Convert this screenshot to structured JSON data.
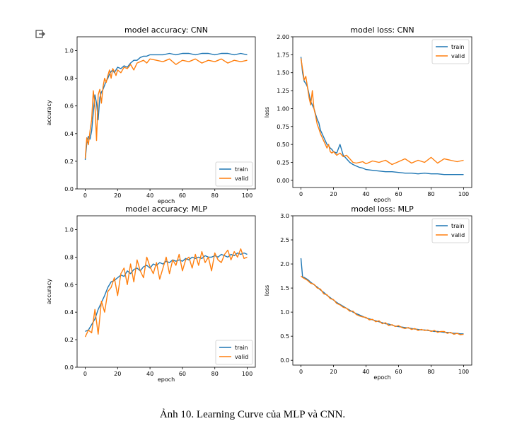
{
  "toolbar": {
    "export_icon": "export-icon"
  },
  "caption": "Ảnh 10. Learning Curve của MLP và CNN.",
  "colors": {
    "train": "#1f77b4",
    "valid": "#ff7f0e",
    "axis": "#000000"
  },
  "chart_data": [
    {
      "id": "cnn-accuracy",
      "type": "line",
      "title": "model accuracy: CNN",
      "xlabel": "epoch",
      "ylabel": "accuracy",
      "xlim": [
        -5,
        105
      ],
      "ylim": [
        0.0,
        1.1
      ],
      "xticks": [
        0,
        20,
        40,
        60,
        80,
        100
      ],
      "yticks": [
        0.0,
        0.2,
        0.4,
        0.6,
        0.8,
        1.0
      ],
      "ytick_labels": [
        "0.0",
        "0.2",
        "0.4",
        "0.6",
        "0.8",
        "1.0"
      ],
      "legend": {
        "position": "lower-right",
        "entries": [
          "train",
          "valid"
        ]
      },
      "x": [
        0,
        1,
        2,
        3,
        4,
        5,
        6,
        7,
        8,
        9,
        10,
        11,
        12,
        13,
        14,
        15,
        16,
        17,
        18,
        19,
        20,
        22,
        24,
        26,
        28,
        30,
        32,
        34,
        36,
        38,
        40,
        44,
        48,
        52,
        56,
        60,
        64,
        68,
        72,
        76,
        80,
        84,
        88,
        92,
        96,
        100
      ],
      "series": [
        {
          "name": "train",
          "values": [
            0.21,
            0.33,
            0.38,
            0.36,
            0.42,
            0.55,
            0.68,
            0.62,
            0.5,
            0.66,
            0.7,
            0.72,
            0.75,
            0.78,
            0.8,
            0.83,
            0.85,
            0.86,
            0.84,
            0.86,
            0.88,
            0.87,
            0.89,
            0.88,
            0.91,
            0.93,
            0.93,
            0.95,
            0.96,
            0.96,
            0.97,
            0.97,
            0.97,
            0.98,
            0.97,
            0.98,
            0.98,
            0.97,
            0.98,
            0.98,
            0.97,
            0.98,
            0.98,
            0.97,
            0.98,
            0.97
          ]
        },
        {
          "name": "valid",
          "values": [
            0.22,
            0.37,
            0.32,
            0.42,
            0.5,
            0.71,
            0.6,
            0.35,
            0.68,
            0.72,
            0.62,
            0.74,
            0.8,
            0.77,
            0.82,
            0.86,
            0.8,
            0.87,
            0.85,
            0.82,
            0.86,
            0.84,
            0.88,
            0.87,
            0.9,
            0.86,
            0.91,
            0.92,
            0.93,
            0.91,
            0.94,
            0.93,
            0.92,
            0.94,
            0.9,
            0.93,
            0.92,
            0.94,
            0.91,
            0.93,
            0.92,
            0.94,
            0.91,
            0.93,
            0.92,
            0.93
          ]
        }
      ]
    },
    {
      "id": "cnn-loss",
      "type": "line",
      "title": "model loss: CNN",
      "xlabel": "epoch",
      "ylabel": "loss",
      "xlim": [
        -5,
        105
      ],
      "ylim": [
        -0.1,
        2.0
      ],
      "xticks": [
        0,
        20,
        40,
        60,
        80,
        100
      ],
      "yticks": [
        0.0,
        0.25,
        0.5,
        0.75,
        1.0,
        1.25,
        1.5,
        1.75,
        2.0
      ],
      "ytick_labels": [
        "0.00",
        "0.25",
        "0.50",
        "0.75",
        "1.00",
        "1.25",
        "1.50",
        "1.75",
        "2.00"
      ],
      "legend": {
        "position": "top-right",
        "entries": [
          "train",
          "valid"
        ]
      },
      "x": [
        0,
        1,
        2,
        3,
        4,
        5,
        6,
        7,
        8,
        9,
        10,
        11,
        12,
        13,
        14,
        15,
        16,
        17,
        18,
        19,
        20,
        22,
        24,
        26,
        28,
        30,
        32,
        34,
        36,
        38,
        40,
        44,
        48,
        52,
        56,
        60,
        64,
        68,
        72,
        76,
        80,
        84,
        88,
        92,
        96,
        100
      ],
      "series": [
        {
          "name": "train",
          "values": [
            1.72,
            1.5,
            1.38,
            1.35,
            1.3,
            1.2,
            1.1,
            1.05,
            1.0,
            0.92,
            0.85,
            0.8,
            0.7,
            0.65,
            0.6,
            0.55,
            0.5,
            0.48,
            0.45,
            0.43,
            0.4,
            0.38,
            0.5,
            0.35,
            0.3,
            0.25,
            0.22,
            0.2,
            0.18,
            0.17,
            0.15,
            0.14,
            0.13,
            0.12,
            0.12,
            0.11,
            0.1,
            0.1,
            0.09,
            0.1,
            0.09,
            0.09,
            0.08,
            0.08,
            0.08,
            0.08
          ]
        },
        {
          "name": "valid",
          "values": [
            1.7,
            1.55,
            1.4,
            1.45,
            1.3,
            1.15,
            1.05,
            1.25,
            1.0,
            0.9,
            0.78,
            0.72,
            0.65,
            0.6,
            0.55,
            0.5,
            0.45,
            0.5,
            0.4,
            0.38,
            0.4,
            0.35,
            0.38,
            0.33,
            0.35,
            0.3,
            0.25,
            0.24,
            0.25,
            0.26,
            0.23,
            0.27,
            0.25,
            0.28,
            0.22,
            0.26,
            0.3,
            0.24,
            0.28,
            0.25,
            0.32,
            0.24,
            0.3,
            0.28,
            0.26,
            0.28
          ]
        }
      ]
    },
    {
      "id": "mlp-accuracy",
      "type": "line",
      "title": "model accuracy: MLP",
      "xlabel": "epoch",
      "ylabel": "accuracy",
      "xlim": [
        -5,
        105
      ],
      "ylim": [
        0.0,
        1.1
      ],
      "xticks": [
        0,
        20,
        40,
        60,
        80,
        100
      ],
      "yticks": [
        0.0,
        0.2,
        0.4,
        0.6,
        0.8,
        1.0
      ],
      "ytick_labels": [
        "0.0",
        "0.2",
        "0.4",
        "0.6",
        "0.8",
        "1.0"
      ],
      "legend": {
        "position": "lower-right",
        "entries": [
          "train",
          "valid"
        ]
      },
      "x": [
        0,
        2,
        4,
        6,
        8,
        10,
        12,
        14,
        16,
        18,
        20,
        22,
        24,
        26,
        28,
        30,
        32,
        34,
        36,
        38,
        40,
        42,
        44,
        46,
        48,
        50,
        52,
        54,
        56,
        58,
        60,
        62,
        64,
        66,
        68,
        70,
        72,
        74,
        76,
        78,
        80,
        82,
        84,
        86,
        88,
        90,
        92,
        94,
        96,
        98,
        100
      ],
      "series": [
        {
          "name": "train",
          "values": [
            0.26,
            0.27,
            0.31,
            0.35,
            0.42,
            0.47,
            0.52,
            0.58,
            0.62,
            0.63,
            0.65,
            0.67,
            0.66,
            0.7,
            0.68,
            0.71,
            0.72,
            0.7,
            0.73,
            0.74,
            0.72,
            0.75,
            0.74,
            0.76,
            0.75,
            0.77,
            0.76,
            0.78,
            0.77,
            0.78,
            0.77,
            0.79,
            0.78,
            0.8,
            0.79,
            0.8,
            0.79,
            0.81,
            0.8,
            0.8,
            0.81,
            0.8,
            0.82,
            0.81,
            0.8,
            0.82,
            0.81,
            0.83,
            0.82,
            0.83,
            0.82
          ]
        },
        {
          "name": "valid",
          "values": [
            0.22,
            0.27,
            0.25,
            0.42,
            0.24,
            0.48,
            0.4,
            0.55,
            0.58,
            0.65,
            0.52,
            0.68,
            0.72,
            0.6,
            0.75,
            0.62,
            0.78,
            0.7,
            0.65,
            0.8,
            0.73,
            0.68,
            0.76,
            0.64,
            0.72,
            0.8,
            0.68,
            0.78,
            0.74,
            0.82,
            0.7,
            0.78,
            0.8,
            0.72,
            0.82,
            0.74,
            0.84,
            0.76,
            0.8,
            0.7,
            0.83,
            0.78,
            0.76,
            0.82,
            0.85,
            0.78,
            0.84,
            0.8,
            0.86,
            0.79,
            0.8
          ]
        }
      ]
    },
    {
      "id": "mlp-loss",
      "type": "line",
      "title": "model loss: MLP",
      "xlabel": "epoch",
      "ylabel": "loss",
      "xlim": [
        -5,
        105
      ],
      "ylim": [
        -0.1,
        3.0
      ],
      "xticks": [
        0,
        20,
        40,
        60,
        80,
        100
      ],
      "yticks": [
        0.0,
        0.5,
        1.0,
        1.5,
        2.0,
        2.5,
        3.0
      ],
      "ytick_labels": [
        "0.0",
        "0.5",
        "1.0",
        "1.5",
        "2.0",
        "2.5",
        "3.0"
      ],
      "legend": {
        "position": "top-right",
        "entries": [
          "train",
          "valid"
        ]
      },
      "x": [
        0,
        1,
        2,
        4,
        6,
        8,
        10,
        12,
        14,
        16,
        18,
        20,
        22,
        24,
        26,
        28,
        30,
        32,
        34,
        36,
        38,
        40,
        42,
        44,
        46,
        48,
        50,
        52,
        54,
        56,
        58,
        60,
        62,
        64,
        66,
        68,
        70,
        72,
        74,
        76,
        78,
        80,
        82,
        84,
        86,
        88,
        90,
        92,
        94,
        96,
        98,
        100
      ],
      "series": [
        {
          "name": "train",
          "values": [
            2.12,
            1.73,
            1.72,
            1.68,
            1.62,
            1.57,
            1.52,
            1.46,
            1.41,
            1.35,
            1.3,
            1.25,
            1.2,
            1.16,
            1.12,
            1.08,
            1.04,
            1.0,
            0.97,
            0.94,
            0.91,
            0.88,
            0.86,
            0.84,
            0.82,
            0.8,
            0.78,
            0.76,
            0.75,
            0.73,
            0.71,
            0.7,
            0.69,
            0.68,
            0.67,
            0.66,
            0.65,
            0.64,
            0.63,
            0.63,
            0.62,
            0.61,
            0.6,
            0.6,
            0.59,
            0.58,
            0.58,
            0.57,
            0.56,
            0.56,
            0.55,
            0.55
          ]
        },
        {
          "name": "valid",
          "values": [
            1.75,
            1.72,
            1.7,
            1.66,
            1.6,
            1.58,
            1.5,
            1.48,
            1.38,
            1.36,
            1.28,
            1.26,
            1.18,
            1.15,
            1.1,
            1.08,
            1.02,
            1.02,
            0.95,
            0.92,
            0.9,
            0.89,
            0.84,
            0.85,
            0.8,
            0.82,
            0.76,
            0.78,
            0.72,
            0.74,
            0.7,
            0.72,
            0.68,
            0.66,
            0.68,
            0.64,
            0.66,
            0.62,
            0.64,
            0.62,
            0.63,
            0.6,
            0.62,
            0.58,
            0.6,
            0.6,
            0.56,
            0.58,
            0.54,
            0.56,
            0.53,
            0.54
          ]
        }
      ]
    }
  ]
}
